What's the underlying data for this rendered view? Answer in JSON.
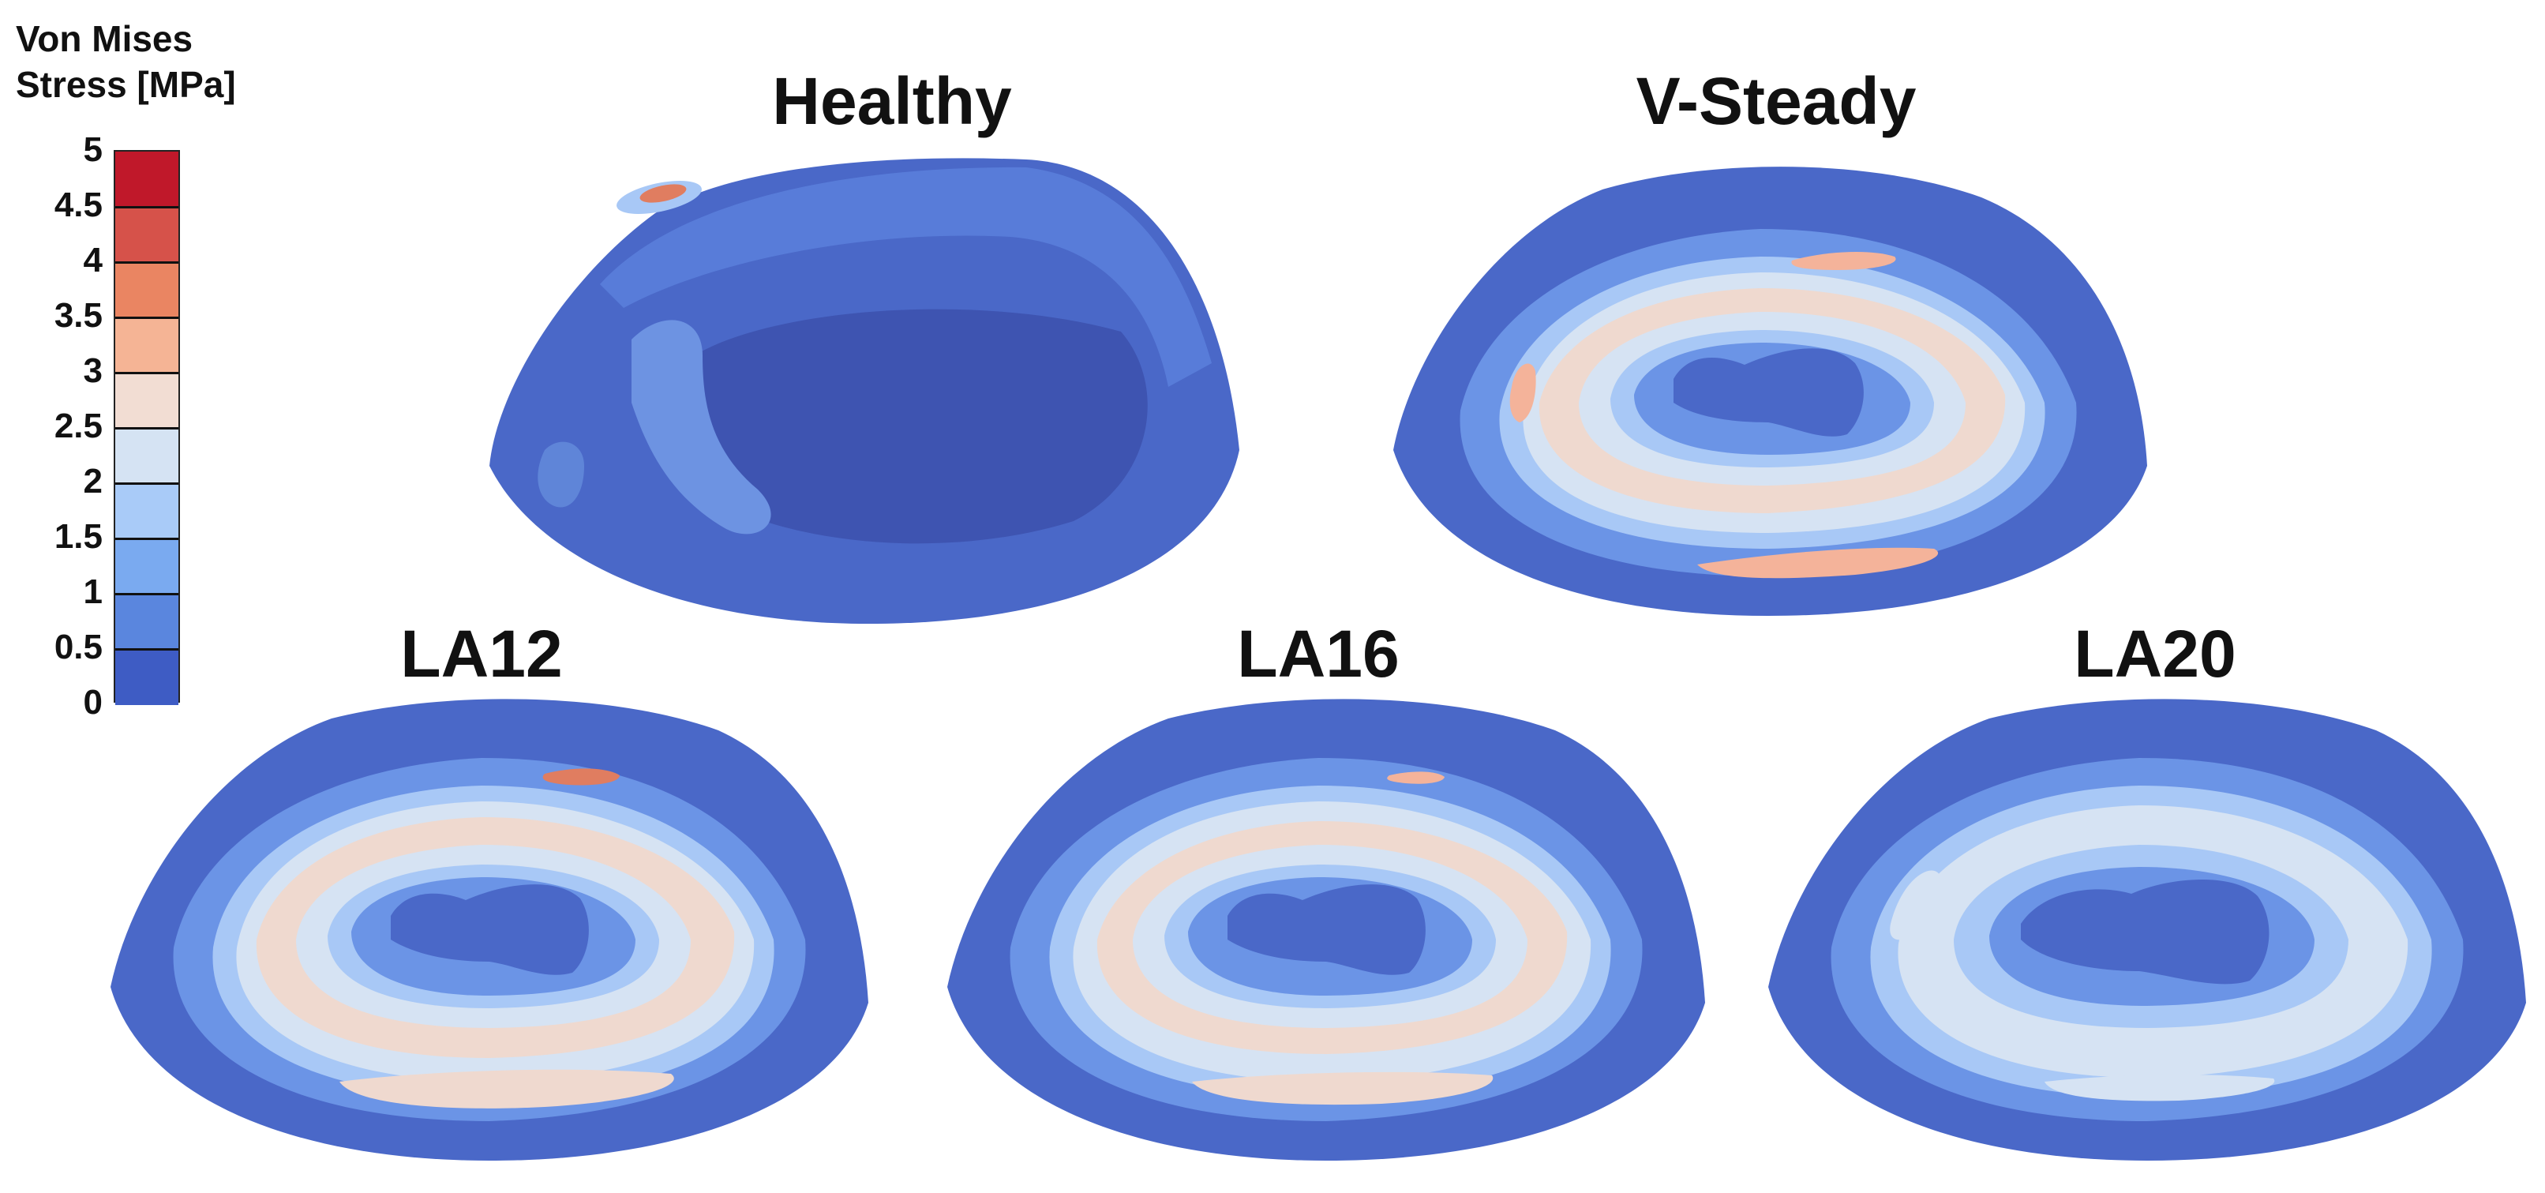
{
  "legend": {
    "title_line1": "Von Mises",
    "title_line2": "Stress [MPa]",
    "ticks": [
      "5",
      "4.5",
      "4",
      "3.5",
      "3",
      "2.5",
      "2",
      "1.5",
      "1",
      "0.5",
      "0"
    ],
    "colors": [
      "#c0182a",
      "#d6524a",
      "#ea8562",
      "#f5b495",
      "#f2ddd3",
      "#d5e3f3",
      "#a9cbf8",
      "#7aaaf0",
      "#5a86de",
      "#3e5cc4"
    ]
  },
  "panels": {
    "healthy": "Healthy",
    "vsteady": "V-Steady",
    "la12": "LA12",
    "la16": "LA16",
    "la20": "LA20"
  },
  "palette": {
    "deep": "#3f55b8",
    "dark": "#4a68c8",
    "mid": "#6b94e6",
    "light": "#a8c8f6",
    "pale": "#d6e3f3",
    "cream": "#efd9cf",
    "peach": "#f4b39a",
    "red": "#e07d60"
  }
}
